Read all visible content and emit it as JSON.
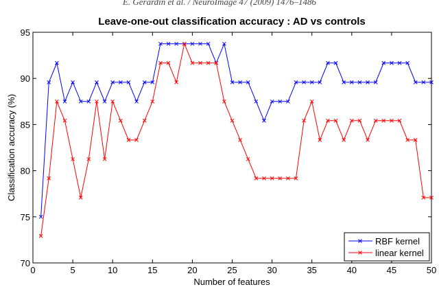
{
  "page_header": "E. Gerardin et al. / NeuroImage 47 (2009) 1476–1486",
  "chart_data": {
    "type": "line",
    "title": "Leave-one-out classification accuracy : AD vs controls",
    "xlabel": "Number of features",
    "ylabel": "Classification accuracy (%)",
    "xlim": [
      0,
      50
    ],
    "ylim": [
      70,
      95
    ],
    "xticks": [
      0,
      5,
      10,
      15,
      20,
      25,
      30,
      35,
      40,
      45,
      50
    ],
    "yticks": [
      70,
      75,
      80,
      85,
      90,
      95
    ],
    "grid": false,
    "legend_placement": "bottom-right",
    "x": [
      1,
      2,
      3,
      4,
      5,
      6,
      7,
      8,
      9,
      10,
      11,
      12,
      13,
      14,
      15,
      16,
      17,
      18,
      19,
      20,
      21,
      22,
      23,
      24,
      25,
      26,
      27,
      28,
      29,
      30,
      31,
      32,
      33,
      34,
      35,
      36,
      37,
      38,
      39,
      40,
      41,
      42,
      43,
      44,
      45,
      46,
      47,
      48,
      49,
      50
    ],
    "series": [
      {
        "name": "RBF kernel",
        "color": "#0000ff",
        "marker": "x",
        "values": [
          75,
          89.58,
          91.67,
          87.5,
          89.58,
          87.5,
          87.5,
          89.58,
          87.5,
          89.58,
          89.58,
          89.58,
          87.5,
          89.58,
          89.58,
          93.75,
          93.75,
          93.75,
          93.75,
          93.75,
          93.75,
          93.75,
          91.67,
          93.75,
          89.58,
          89.58,
          89.58,
          87.5,
          85.42,
          87.5,
          87.5,
          87.5,
          89.58,
          89.58,
          89.58,
          89.58,
          91.67,
          91.67,
          89.58,
          89.58,
          89.58,
          89.58,
          89.58,
          91.67,
          91.67,
          91.67,
          91.67,
          89.58,
          89.58,
          89.58
        ]
      },
      {
        "name": "linear kernel",
        "color": "#ff0000",
        "marker": "x",
        "values": [
          72.92,
          79.17,
          87.5,
          85.42,
          81.25,
          77.08,
          81.25,
          87.5,
          81.25,
          87.5,
          85.42,
          83.33,
          83.33,
          85.42,
          87.5,
          91.67,
          91.67,
          89.58,
          93.75,
          91.67,
          91.67,
          91.67,
          91.67,
          87.5,
          85.42,
          83.33,
          81.25,
          79.17,
          79.17,
          79.17,
          79.17,
          79.17,
          79.17,
          85.42,
          87.5,
          83.33,
          85.42,
          85.42,
          83.33,
          85.42,
          85.42,
          83.33,
          85.42,
          85.42,
          85.42,
          85.42,
          83.33,
          83.33,
          77.08,
          77.08
        ]
      }
    ]
  }
}
